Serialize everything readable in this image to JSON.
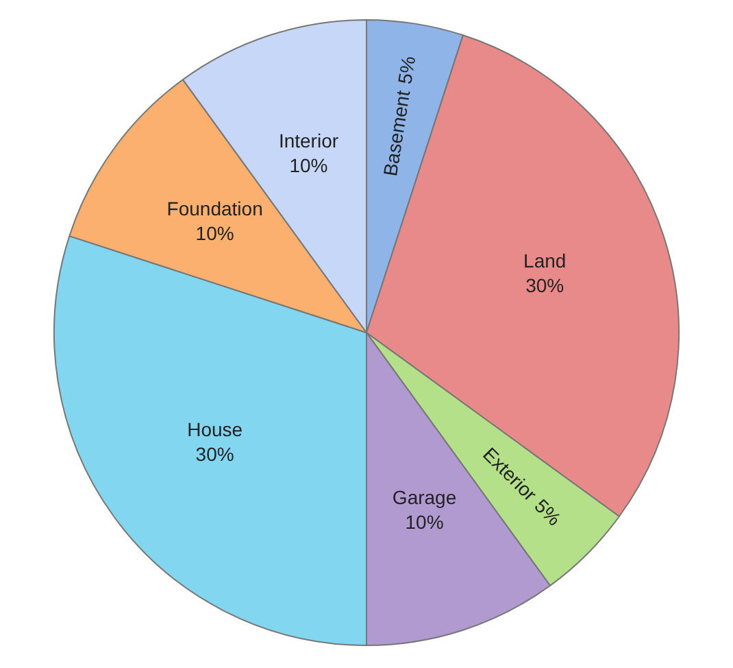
{
  "chart_data": {
    "type": "pie",
    "categories": [
      "Basement",
      "Land",
      "Exterior",
      "Garage",
      "House",
      "Foundation",
      "Interior"
    ],
    "values": [
      5,
      30,
      5,
      10,
      30,
      10,
      10
    ],
    "colors": [
      "#8fb4e8",
      "#e98a8a",
      "#b5e08a",
      "#b09ad0",
      "#82d6ef",
      "#fbb070",
      "#c6d7f7"
    ],
    "value_labels": [
      "5%",
      "30%",
      "5%",
      "10%",
      "30%",
      "10%",
      "10%"
    ],
    "legend": false
  }
}
